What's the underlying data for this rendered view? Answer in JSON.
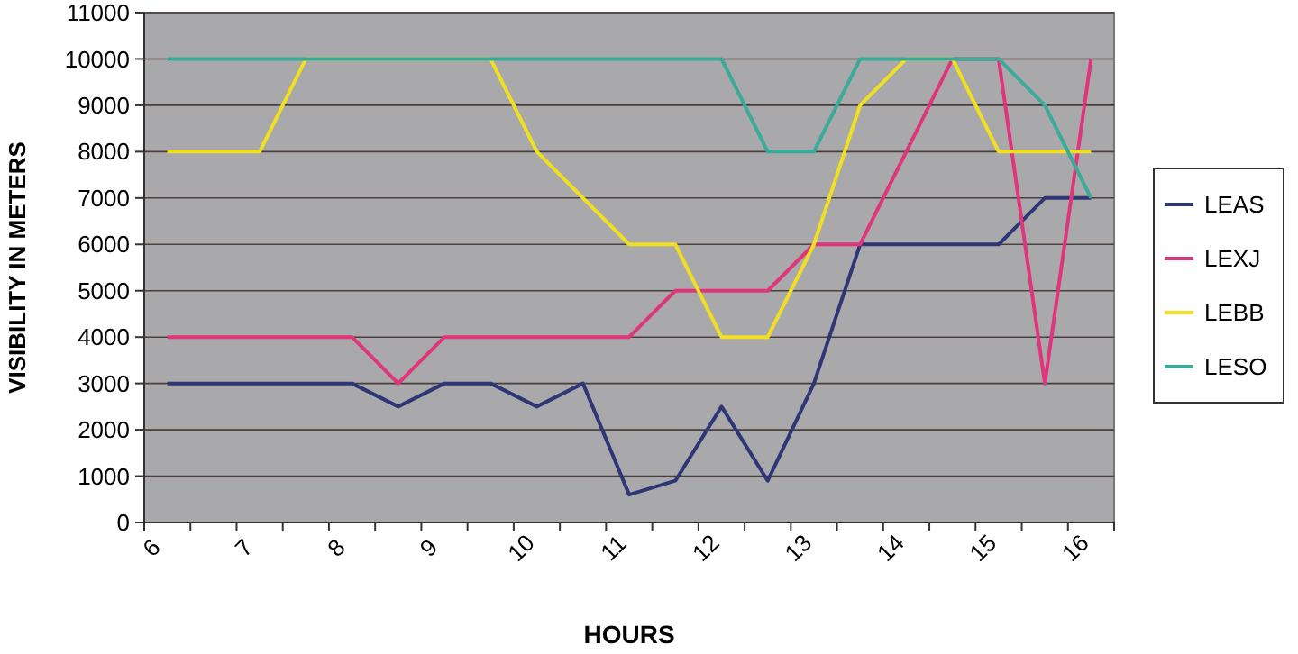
{
  "chart_data": {
    "type": "line",
    "xlabel": "HOURS",
    "ylabel": "VISIBILITY IN METERS",
    "x": [
      6.25,
      6.75,
      7.25,
      7.75,
      8.25,
      8.75,
      9.25,
      9.75,
      10.25,
      10.75,
      11.25,
      11.75,
      12.25,
      12.75,
      13.25,
      13.75,
      14.25,
      14.75,
      15.25,
      15.75,
      16.25
    ],
    "xlim": [
      6,
      16.5
    ],
    "xticks": [
      6,
      {
        "value": 6.5,
        "label": null
      },
      7,
      {
        "value": 7.5,
        "label": null
      },
      8,
      {
        "value": 8.5,
        "label": null
      },
      9,
      {
        "value": 9.5,
        "label": null
      },
      10,
      {
        "value": 10.5,
        "label": null
      },
      11,
      {
        "value": 11.5,
        "label": null
      },
      12,
      {
        "value": 12.5,
        "label": null
      },
      13,
      {
        "value": 13.5,
        "label": null
      },
      14,
      {
        "value": 14.5,
        "label": null
      },
      15,
      {
        "value": 15.5,
        "label": null
      },
      16,
      {
        "value": 16.5,
        "label": null
      }
    ],
    "ylim": [
      0,
      11000
    ],
    "yticks": [
      0,
      1000,
      2000,
      3000,
      4000,
      5000,
      6000,
      7000,
      8000,
      9000,
      10000,
      11000
    ],
    "grid": "y",
    "legend": "right",
    "marker": "none",
    "line_style": "solid",
    "series": [
      {
        "name": "LEAS",
        "color": "#2e3676",
        "values": [
          3000,
          3000,
          3000,
          3000,
          3000,
          2500,
          3000,
          3000,
          2500,
          3000,
          600,
          900,
          2500,
          900,
          3000,
          6000,
          6000,
          6000,
          6000,
          7000,
          7000
        ]
      },
      {
        "name": "LEXJ",
        "color": "#e0357a",
        "values": [
          4000,
          4000,
          4000,
          4000,
          4000,
          3000,
          4000,
          4000,
          4000,
          4000,
          4000,
          5000,
          5000,
          5000,
          6000,
          6000,
          8000,
          10000,
          10000,
          3000,
          10000
        ]
      },
      {
        "name": "LEBB",
        "color": "#f0e020",
        "values": [
          8000,
          8000,
          8000,
          10000,
          10000,
          10000,
          10000,
          10000,
          8000,
          7000,
          6000,
          6000,
          4000,
          4000,
          6000,
          9000,
          10000,
          10000,
          8000,
          8000,
          8000
        ]
      },
      {
        "name": "LESO",
        "color": "#3aaa99",
        "values": [
          10000,
          10000,
          10000,
          10000,
          10000,
          10000,
          10000,
          10000,
          10000,
          10000,
          10000,
          10000,
          10000,
          8000,
          8000,
          10000,
          10000,
          10000,
          10000,
          9000,
          7000
        ]
      }
    ]
  }
}
